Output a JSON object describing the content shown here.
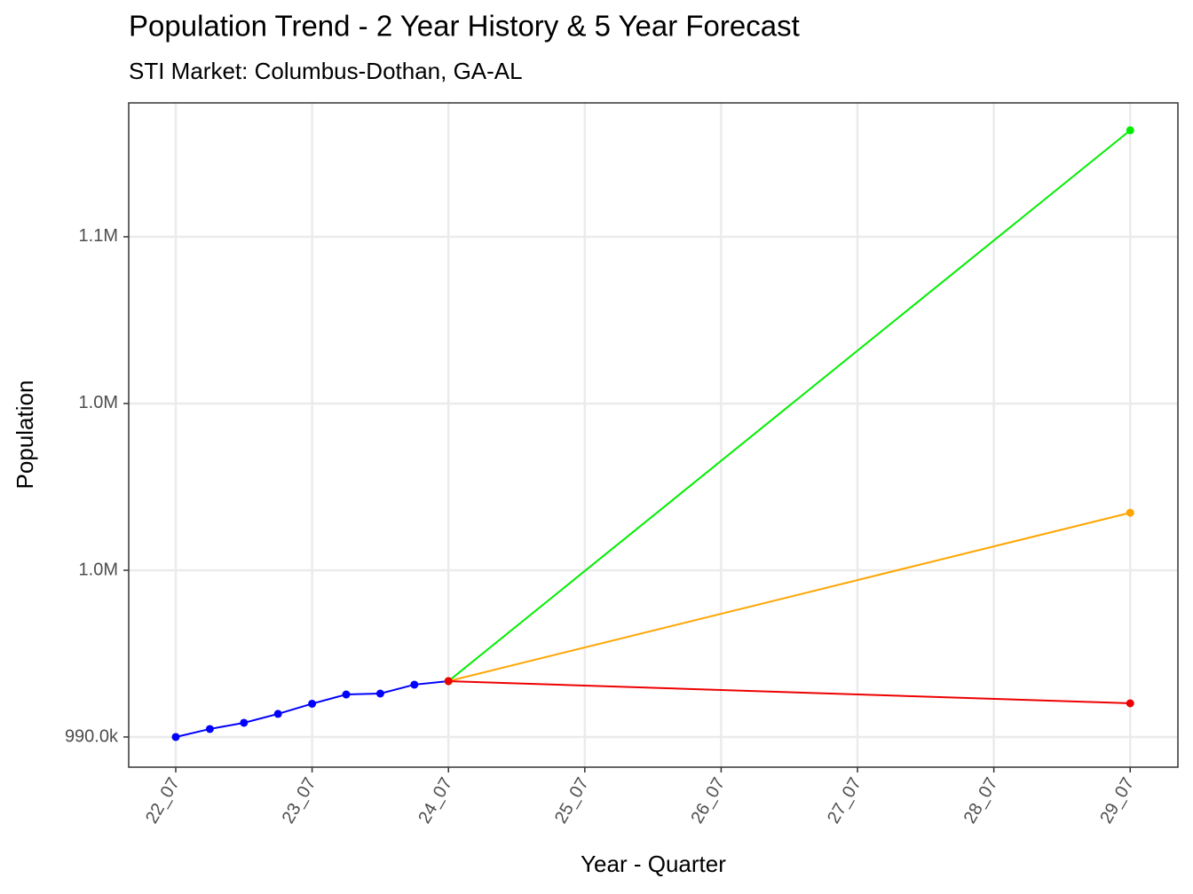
{
  "chart_data": {
    "type": "line",
    "title": "Population Trend - 2 Year History & 5 Year Forecast",
    "subtitle": "STI Market: Columbus-Dothan,  GA-AL",
    "x_label": "Year - Quarter",
    "y_label": "Population",
    "xlim": [
      -0.345,
      7.35
    ],
    "xticks": [
      {
        "value": 0,
        "label": "22_07"
      },
      {
        "value": 1,
        "label": "23_07"
      },
      {
        "value": 2,
        "label": "24_07"
      },
      {
        "value": 3,
        "label": "25_07"
      },
      {
        "value": 4,
        "label": "26_07"
      },
      {
        "value": 5,
        "label": "27_07"
      },
      {
        "value": 6,
        "label": "28_07"
      },
      {
        "value": 7,
        "label": "29_07"
      }
    ],
    "ylim": [
      986380,
      1066060
    ],
    "yticks": [
      {
        "value": 990000,
        "label": "990.0k"
      },
      {
        "value": 1010000,
        "label": "1.0M"
      },
      {
        "value": 1030000,
        "label": "1.0M"
      },
      {
        "value": 1050000,
        "label": "1.1M"
      }
    ],
    "grid": true,
    "series": [
      {
        "color": "#0000ff",
        "x": [
          0,
          0.25,
          0.5,
          0.75,
          1,
          1.25,
          1.5,
          1.75,
          2
        ],
        "values": [
          990000,
          990960,
          991700,
          992770,
          993990,
          995100,
          995210,
          996280,
          996700
        ]
      },
      {
        "color": "#00ee00",
        "x": [
          2,
          7
        ],
        "values": [
          996700,
          1062770
        ]
      },
      {
        "color": "#ffa500",
        "x": [
          2,
          7
        ],
        "values": [
          996700,
          1016900
        ]
      },
      {
        "color": "#ee0000",
        "x": [
          2,
          7
        ],
        "values": [
          996700,
          994040
        ]
      }
    ]
  }
}
